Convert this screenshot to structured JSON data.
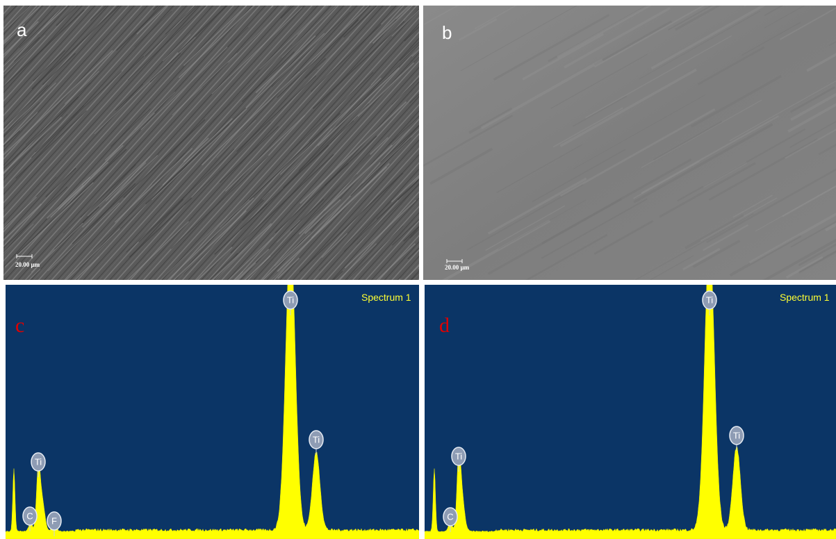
{
  "panels": [
    {
      "label": "a",
      "scale_bar": "20.00 µm"
    },
    {
      "label": "b",
      "scale_bar": "20.00 µm"
    },
    {
      "label": "c",
      "spectrum_title": "Spectrum 1",
      "peaks": [
        "Ti",
        "Ti",
        "C",
        "F",
        "Ti"
      ]
    },
    {
      "label": "d",
      "spectrum_title": "Spectrum 1",
      "peaks": [
        "Ti",
        "Ti",
        "C",
        "Ti"
      ]
    }
  ]
}
